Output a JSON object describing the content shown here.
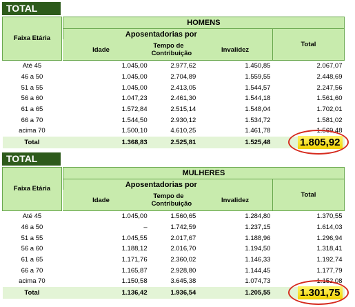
{
  "blocks": [
    {
      "label": "TOTAL",
      "age_header": "Faixa Etária",
      "group": "HOMENS",
      "subheader": "Aposentadorias por",
      "columns": [
        "Idade",
        "Tempo de Contribuição",
        "Invalidez"
      ],
      "total_header": "Total",
      "rows": [
        [
          "Até 45",
          "1.045,00",
          "2.977,62",
          "1.450,85",
          "2.067,07"
        ],
        [
          "46 a 50",
          "1.045,00",
          "2.704,89",
          "1.559,55",
          "2.448,69"
        ],
        [
          "51 a 55",
          "1.045,00",
          "2.413,05",
          "1.544,57",
          "2.247,56"
        ],
        [
          "56 a 60",
          "1.047,23",
          "2.461,30",
          "1.544,18",
          "1.561,60"
        ],
        [
          "61 a 65",
          "1.572,84",
          "2.515,14",
          "1.548,04",
          "1.702,01"
        ],
        [
          "66 a 70",
          "1.544,50",
          "2.930,12",
          "1.534,72",
          "1.581,02"
        ],
        [
          "acima 70",
          "1.500,10",
          "4.610,25",
          "1.461,78",
          "1.569,48"
        ]
      ],
      "total_row": [
        "Total",
        "1.368,83",
        "2.525,81",
        "1.525,48",
        "1.805,92"
      ]
    },
    {
      "label": "TOTAL",
      "age_header": "Faixa Etária",
      "group": "MULHERES",
      "subheader": "Aposentadorias por",
      "columns": [
        "Idade",
        "Tempo de Contribuição",
        "Invalidez"
      ],
      "total_header": "Total",
      "rows": [
        [
          "Até 45",
          "1.045,00",
          "1.560,65",
          "1.284,80",
          "1.370,55"
        ],
        [
          "46 a 50",
          "–",
          "1.742,59",
          "1.237,15",
          "1.614,03"
        ],
        [
          "51 a 55",
          "1.045,55",
          "2.017,67",
          "1.188,96",
          "1.296,94"
        ],
        [
          "56 a 60",
          "1.188,12",
          "2.016,70",
          "1.194,50",
          "1.318,41"
        ],
        [
          "61 a 65",
          "1.171,76",
          "2.360,02",
          "1.146,33",
          "1.192,74"
        ],
        [
          "66 a 70",
          "1.165,87",
          "2.928,80",
          "1.144,45",
          "1.177,79"
        ],
        [
          "acima 70",
          "1.150,58",
          "3.645,38",
          "1.074,73",
          "1.152,08"
        ]
      ],
      "total_row": [
        "Total",
        "1.136,42",
        "1.936,54",
        "1.205,55",
        "1.301,75"
      ]
    }
  ]
}
